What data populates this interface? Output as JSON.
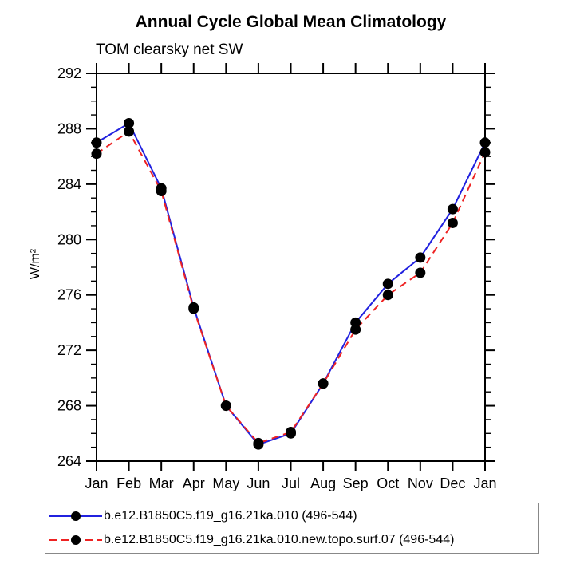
{
  "title": "Annual Cycle Global Mean Climatology",
  "subtitle": "TOM clearsky net SW",
  "chart_data": {
    "type": "line",
    "x": [
      "Jan",
      "Feb",
      "Mar",
      "Apr",
      "May",
      "Jun",
      "Jul",
      "Aug",
      "Sep",
      "Oct",
      "Nov",
      "Dec",
      "Jan"
    ],
    "xlabel": "",
    "ylabel": "W/m²",
    "ylim": [
      264,
      292
    ],
    "ytick_major": 4,
    "ytick_minor": 1,
    "grid": false,
    "legend_position": "bottom",
    "axis_color": "#000000",
    "marker_color": "#000000",
    "series": [
      {
        "name": "b.e12.B1850C5.f19_g16.21ka.010 (496-544)",
        "color": "#2121df",
        "style": "solid",
        "marker": "filled-circle",
        "values": [
          287.0,
          288.4,
          283.7,
          275.1,
          268.0,
          265.2,
          266.0,
          269.6,
          274.0,
          276.8,
          278.7,
          282.2,
          287.0
        ]
      },
      {
        "name": "b.e12.B1850C5.f19_g16.21ka.010.new.topo.surf.07 (496-544)",
        "color": "#ee2222",
        "style": "dashed",
        "marker": "filled-circle",
        "values": [
          286.2,
          287.8,
          283.5,
          275.0,
          268.0,
          265.3,
          266.1,
          269.6,
          273.5,
          276.0,
          277.6,
          281.2,
          286.3
        ]
      }
    ]
  }
}
